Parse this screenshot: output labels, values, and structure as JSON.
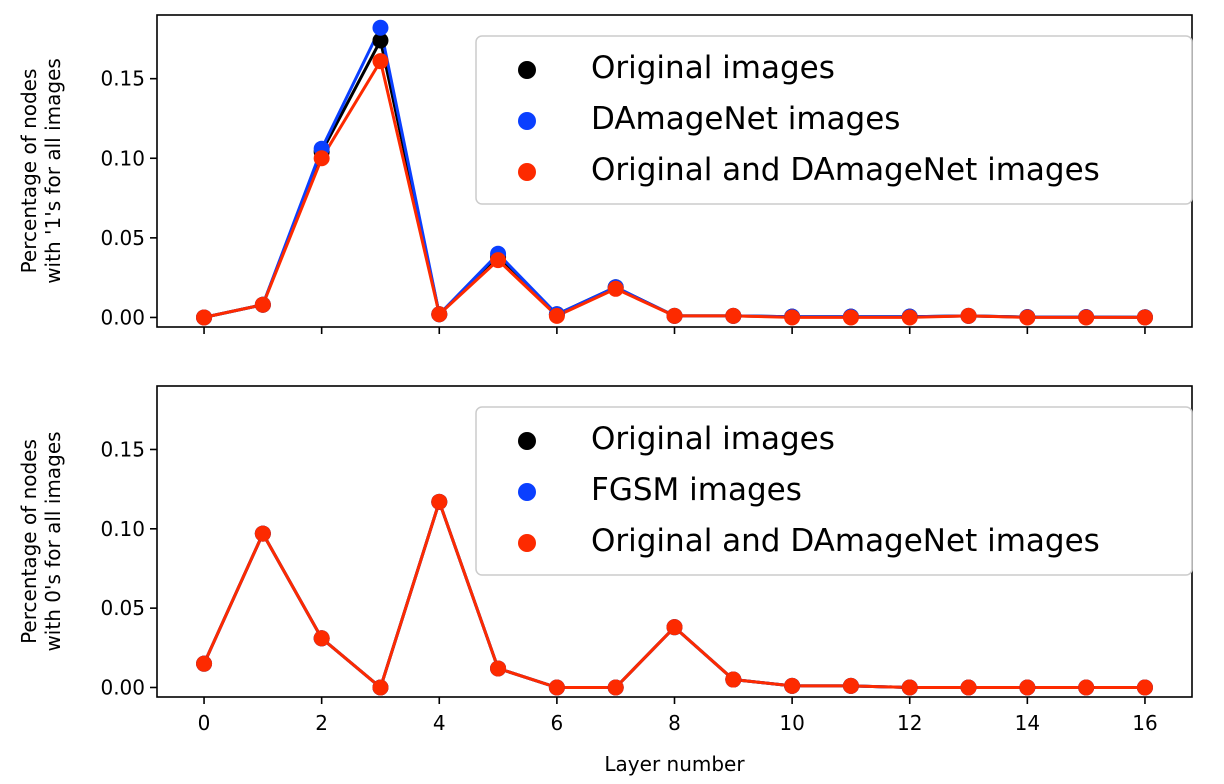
{
  "chart_data": [
    {
      "type": "line",
      "title": "",
      "xlabel": "",
      "ylabel": [
        "Percentage of nodes",
        "with '1's for all images"
      ],
      "xlim": [
        -0.8,
        16.8
      ],
      "ylim": [
        -0.006,
        0.19
      ],
      "xticks": [
        0,
        2,
        4,
        6,
        8,
        10,
        12,
        14,
        16
      ],
      "xtick_labels_visible": false,
      "yticks": [
        0.0,
        0.05,
        0.1,
        0.15
      ],
      "ytick_labels": [
        "0.00",
        "0.05",
        "0.10",
        "0.15"
      ],
      "grid": false,
      "legend_position": "top-right",
      "x": [
        0,
        1,
        2,
        3,
        4,
        5,
        6,
        7,
        8,
        9,
        10,
        11,
        12,
        13,
        14,
        15,
        16
      ],
      "series": [
        {
          "name": "Original images",
          "color": "#000000",
          "values": [
            0.0,
            0.008,
            0.104,
            0.174,
            0.002,
            0.038,
            0.002,
            0.019,
            0.001,
            0.001,
            0.0005,
            0.0005,
            0.0005,
            0.001,
            0.0002,
            0.0002,
            0.0001
          ]
        },
        {
          "name": "DAmageNet images",
          "color": "#0a3fff",
          "values": [
            0.0,
            0.008,
            0.106,
            0.182,
            0.002,
            0.04,
            0.002,
            0.019,
            0.001,
            0.001,
            0.0005,
            0.0005,
            0.0005,
            0.001,
            0.0002,
            0.0002,
            0.0001
          ]
        },
        {
          "name": "Original and DAmageNet images",
          "color": "#fd2a00",
          "values": [
            0.0,
            0.008,
            0.1,
            0.161,
            0.002,
            0.036,
            0.001,
            0.018,
            0.001,
            0.001,
            0.0,
            0.0,
            0.0,
            0.001,
            0.0,
            0.0,
            0.0
          ]
        }
      ]
    },
    {
      "type": "line",
      "title": "",
      "xlabel": "Layer number",
      "ylabel": [
        "Percentage of nodes",
        "with 0's for all images"
      ],
      "xlim": [
        -0.8,
        16.8
      ],
      "ylim": [
        -0.006,
        0.19
      ],
      "xticks": [
        0,
        2,
        4,
        6,
        8,
        10,
        12,
        14,
        16
      ],
      "xtick_labels": [
        "0",
        "2",
        "4",
        "6",
        "8",
        "10",
        "12",
        "14",
        "16"
      ],
      "yticks": [
        0.0,
        0.05,
        0.1,
        0.15
      ],
      "ytick_labels": [
        "0.00",
        "0.05",
        "0.10",
        "0.15"
      ],
      "grid": false,
      "legend_position": "top-right",
      "x": [
        0,
        1,
        2,
        3,
        4,
        5,
        6,
        7,
        8,
        9,
        10,
        11,
        12,
        13,
        14,
        15,
        16
      ],
      "series": [
        {
          "name": "Original images",
          "color": "#000000",
          "values": [
            0.015,
            0.097,
            0.031,
            0.0,
            0.117,
            0.012,
            0.0,
            0.0,
            0.038,
            0.005,
            0.001,
            0.001,
            0.0,
            0.0,
            0.0,
            0.0,
            0.0
          ]
        },
        {
          "name": "FGSM images",
          "color": "#0a3fff",
          "values": [
            0.015,
            0.097,
            0.031,
            0.0,
            0.117,
            0.012,
            0.0,
            0.0,
            0.038,
            0.005,
            0.001,
            0.001,
            0.0,
            0.0,
            0.0,
            0.0,
            0.0
          ]
        },
        {
          "name": "Original and DAmageNet images",
          "color": "#fd2a00",
          "values": [
            0.015,
            0.097,
            0.031,
            0.0,
            0.117,
            0.012,
            0.0,
            0.0,
            0.038,
            0.005,
            0.001,
            0.001,
            0.0,
            0.0,
            0.0,
            0.0,
            0.0
          ]
        }
      ]
    }
  ]
}
